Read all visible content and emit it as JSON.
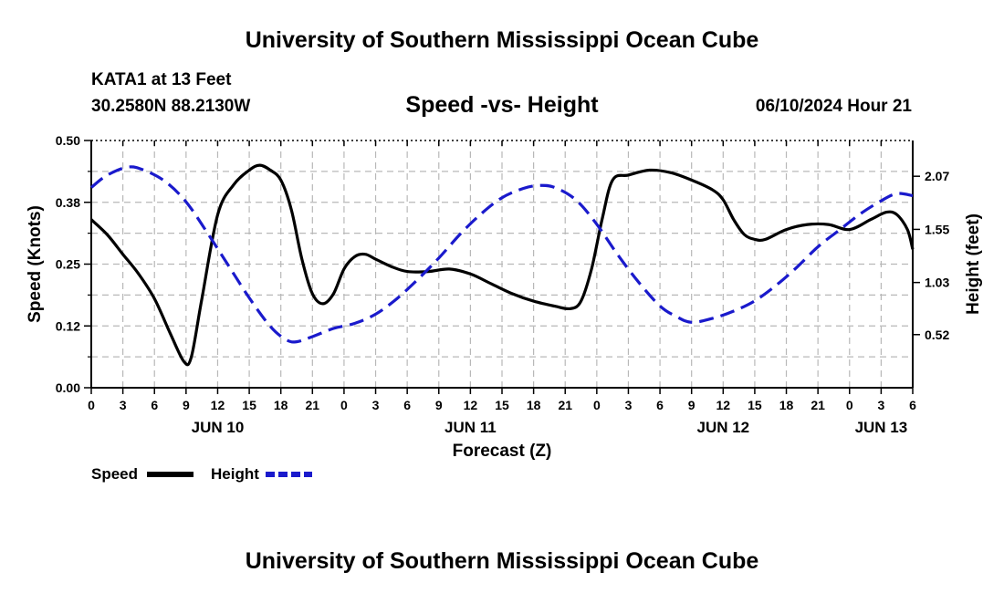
{
  "header": {
    "title": "University of Southern Mississippi Ocean Cube",
    "station": "KATA1 at 13 Feet",
    "coords": "30.2580N  88.2130W",
    "datetime": "06/10/2024 Hour 21",
    "footer_title": "University of Southern Mississippi Ocean Cube"
  },
  "chart_data": {
    "type": "line",
    "title": "Speed -vs- Height",
    "xlabel": "Forecast (Z)",
    "ylabel_left": "Speed (Knots)",
    "ylabel_right": "Height (feet)",
    "x_unit": "hours since 00Z Jun 10",
    "x_range": [
      0,
      78
    ],
    "x_tick_labels": [
      "0",
      "3",
      "6",
      "9",
      "12",
      "15",
      "18",
      "21",
      "0",
      "3",
      "6",
      "9",
      "12",
      "15",
      "18",
      "21",
      "0",
      "3",
      "6",
      "9",
      "12",
      "15",
      "18",
      "21",
      "0",
      "3",
      "6"
    ],
    "date_labels": [
      {
        "label": "JUN 10",
        "x": 12
      },
      {
        "label": "JUN 11",
        "x": 36
      },
      {
        "label": "JUN 12",
        "x": 60
      },
      {
        "label": "JUN 13",
        "x": 75
      }
    ],
    "y_left": {
      "range": [
        0,
        0.5
      ],
      "ticks": [
        0.0,
        0.125,
        0.25,
        0.375,
        0.5
      ],
      "tick_labels": [
        "0.00",
        "0.12",
        "0.25",
        "0.38",
        "0.50"
      ]
    },
    "y_right": {
      "range": [
        0.0,
        2.42
      ],
      "ticks": [
        0.52,
        1.03,
        1.55,
        2.07
      ],
      "tick_labels": [
        "0.52",
        "1.03",
        "1.55",
        "2.07"
      ]
    },
    "grid": true,
    "legend": [
      {
        "name": "Speed",
        "color": "#000000",
        "style": "solid"
      },
      {
        "name": "Height",
        "color": "#1a1acc",
        "style": "dashed"
      }
    ],
    "series": [
      {
        "name": "Speed",
        "axis": "left",
        "color": "#000000",
        "points": [
          [
            0,
            0.34
          ],
          [
            1.5,
            0.31
          ],
          [
            3,
            0.27
          ],
          [
            4.5,
            0.23
          ],
          [
            6,
            0.18
          ],
          [
            7.5,
            0.11
          ],
          [
            8.8,
            0.053
          ],
          [
            9.5,
            0.062
          ],
          [
            10.5,
            0.18
          ],
          [
            12,
            0.35
          ],
          [
            13.5,
            0.41
          ],
          [
            15,
            0.44
          ],
          [
            16,
            0.45
          ],
          [
            17,
            0.44
          ],
          [
            18,
            0.42
          ],
          [
            19,
            0.36
          ],
          [
            20,
            0.26
          ],
          [
            21,
            0.19
          ],
          [
            22,
            0.17
          ],
          [
            23,
            0.19
          ],
          [
            24,
            0.24
          ],
          [
            25,
            0.265
          ],
          [
            26,
            0.27
          ],
          [
            27,
            0.26
          ],
          [
            28.5,
            0.245
          ],
          [
            30,
            0.235
          ],
          [
            32,
            0.235
          ],
          [
            34,
            0.24
          ],
          [
            36,
            0.23
          ],
          [
            38,
            0.21
          ],
          [
            40,
            0.19
          ],
          [
            42,
            0.175
          ],
          [
            44,
            0.165
          ],
          [
            45.5,
            0.16
          ],
          [
            46.5,
            0.175
          ],
          [
            47.5,
            0.24
          ],
          [
            48.5,
            0.34
          ],
          [
            49.5,
            0.42
          ],
          [
            51,
            0.43
          ],
          [
            53,
            0.44
          ],
          [
            55,
            0.435
          ],
          [
            57,
            0.42
          ],
          [
            59,
            0.4
          ],
          [
            60,
            0.38
          ],
          [
            61,
            0.34
          ],
          [
            62,
            0.31
          ],
          [
            63,
            0.3
          ],
          [
            64,
            0.3
          ],
          [
            66,
            0.32
          ],
          [
            68,
            0.33
          ],
          [
            70,
            0.33
          ],
          [
            72,
            0.32
          ],
          [
            74,
            0.34
          ],
          [
            75.5,
            0.355
          ],
          [
            76.5,
            0.35
          ],
          [
            77.5,
            0.32
          ],
          [
            78,
            0.28
          ]
        ]
      },
      {
        "name": "Height",
        "axis": "right",
        "color": "#1a1acc",
        "points": [
          [
            0,
            1.96
          ],
          [
            1.5,
            2.08
          ],
          [
            3.5,
            2.16
          ],
          [
            5,
            2.13
          ],
          [
            7,
            2.02
          ],
          [
            9,
            1.82
          ],
          [
            11,
            1.52
          ],
          [
            13,
            1.2
          ],
          [
            15,
            0.88
          ],
          [
            17,
            0.6
          ],
          [
            18.5,
            0.47
          ],
          [
            19.5,
            0.45
          ],
          [
            21,
            0.5
          ],
          [
            23,
            0.58
          ],
          [
            25,
            0.63
          ],
          [
            27,
            0.72
          ],
          [
            29,
            0.87
          ],
          [
            31,
            1.06
          ],
          [
            33,
            1.27
          ],
          [
            35,
            1.5
          ],
          [
            37,
            1.7
          ],
          [
            39,
            1.86
          ],
          [
            41,
            1.95
          ],
          [
            42.5,
            1.98
          ],
          [
            44,
            1.96
          ],
          [
            46,
            1.84
          ],
          [
            48,
            1.6
          ],
          [
            50,
            1.3
          ],
          [
            52,
            1.03
          ],
          [
            54,
            0.8
          ],
          [
            55.5,
            0.7
          ],
          [
            57,
            0.64
          ],
          [
            59,
            0.68
          ],
          [
            61,
            0.75
          ],
          [
            63,
            0.85
          ],
          [
            65,
            1.0
          ],
          [
            67,
            1.18
          ],
          [
            69,
            1.38
          ],
          [
            71,
            1.54
          ],
          [
            73,
            1.7
          ],
          [
            75,
            1.83
          ],
          [
            76.5,
            1.9
          ],
          [
            78,
            1.88
          ]
        ]
      }
    ]
  }
}
